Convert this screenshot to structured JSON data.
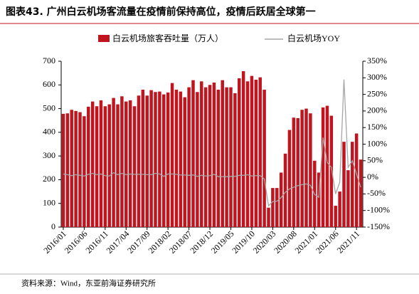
{
  "chart_data": {
    "type": "bar_line",
    "title": "图表43. 广州白云机场客流量在疫情前保持高位，疫情后跃居全球第一",
    "source": "资料来源：Wind，东亚前海证券研究所",
    "categories": [
      "2016/01",
      null,
      null,
      null,
      null,
      "2016/06",
      null,
      null,
      null,
      null,
      "2016/11",
      null,
      null,
      null,
      null,
      "2017/04",
      null,
      null,
      null,
      null,
      "2017/09",
      null,
      null,
      null,
      null,
      "2018/02",
      null,
      null,
      null,
      null,
      "2018/07",
      null,
      null,
      null,
      null,
      "2018/12",
      null,
      null,
      null,
      null,
      "2019/05",
      null,
      null,
      null,
      null,
      "2019/10",
      null,
      null,
      null,
      null,
      "2020/03",
      null,
      null,
      null,
      null,
      "2020/08",
      null,
      null,
      null,
      null,
      "2021/01",
      null,
      null,
      null,
      null,
      "2021/06",
      null,
      null,
      null,
      null,
      "2021/11",
      null
    ],
    "series": [
      {
        "name": "白云机场旅客吞吐量（万人）",
        "type": "bar",
        "color": "#c0141e",
        "values": [
          478,
          480,
          495,
          490,
          485,
          468,
          508,
          530,
          510,
          535,
          510,
          518,
          545,
          518,
          552,
          530,
          535,
          510,
          555,
          580,
          555,
          578,
          570,
          572,
          560,
          568,
          608,
          580,
          572,
          548,
          590,
          620,
          570,
          615,
          590,
          600,
          610,
          580,
          620,
          590,
          590,
          565,
          628,
          658,
          615,
          638,
          622,
          632,
          580,
          82,
          165,
          165,
          230,
          310,
          410,
          462,
          460,
          495,
          500,
          480,
          280,
          230,
          505,
          512,
          470,
          90,
          150,
          360,
          240,
          360,
          395,
          285
        ]
      },
      {
        "name": "白云机场YOY",
        "type": "line",
        "axis": "y2",
        "color": "#a6a6a6",
        "values": [
          10,
          8,
          5,
          8,
          6,
          4,
          9,
          12,
          8,
          10,
          5,
          4,
          14,
          8,
          12,
          8,
          10,
          9,
          9,
          9,
          8,
          8,
          12,
          10,
          3,
          10,
          10,
          9,
          7,
          7,
          6,
          7,
          3,
          6,
          4,
          5,
          9,
          2,
          2,
          2,
          3,
          3,
          6,
          6,
          8,
          4,
          5,
          5,
          -5,
          -86,
          -73,
          -72,
          -61,
          -45,
          -35,
          -30,
          -25,
          -22,
          -20,
          -24,
          -52,
          -60,
          120,
          45,
          30,
          -50,
          -15,
          295,
          30,
          50,
          10,
          -30
        ]
      }
    ],
    "ylim": [
      0,
      700
    ],
    "yticks": [
      0,
      100,
      200,
      300,
      400,
      500,
      600,
      700
    ],
    "y2lim": [
      -150,
      350
    ],
    "y2ticks": [
      {
        "value": -150,
        "label": "-150%"
      },
      {
        "value": -100,
        "label": "-100%"
      },
      {
        "value": -50,
        "label": "-50%"
      },
      {
        "value": 0,
        "label": "0%"
      },
      {
        "value": 50,
        "label": "50%"
      },
      {
        "value": 100,
        "label": "100%"
      },
      {
        "value": 150,
        "label": "150%"
      },
      {
        "value": 200,
        "label": "200%"
      },
      {
        "value": 250,
        "label": "250%"
      },
      {
        "value": 300,
        "label": "300%"
      },
      {
        "value": 350,
        "label": "350%"
      }
    ]
  }
}
